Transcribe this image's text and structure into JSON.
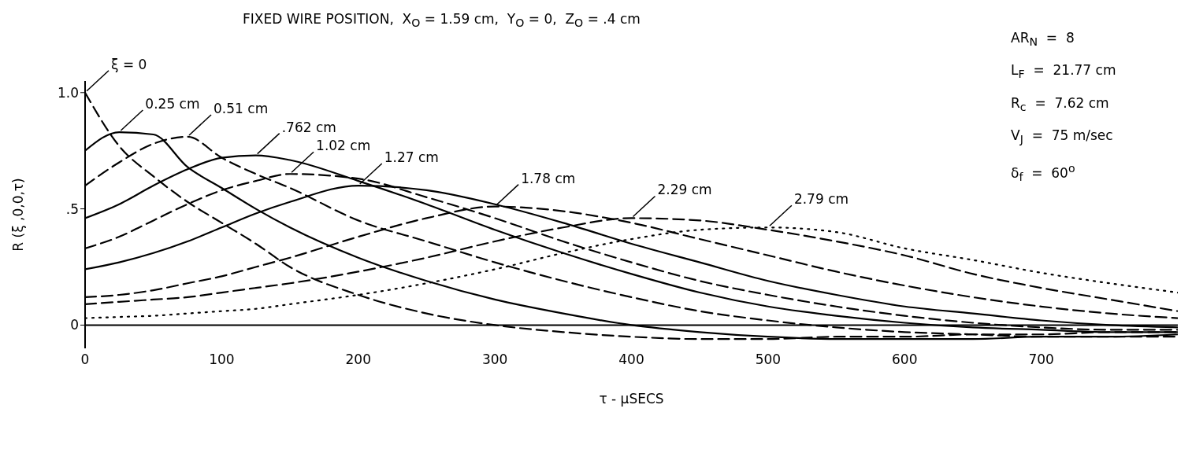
{
  "chart_data": {
    "type": "line",
    "title": "FIXED WIRE POSITION,  X$_{O}$ = 1.59 cm,  Y$_{O}$ = 0,  Z$_{O}$ = .4 cm",
    "xlabel": "τ - μSECS",
    "ylabel": "R (ξ ,0,0,τ)",
    "annotations": [
      "AR$_{N}$  =  8",
      "L$_{F}$  =  21.77 cm",
      "R$_{c}$  =  7.62 cm",
      "V$_{J}$  =  75 m/sec",
      "δ$_{f}$  =  60$^{o}$"
    ],
    "x": [
      0,
      25,
      50,
      75,
      100,
      125,
      150,
      200,
      250,
      300,
      350,
      400,
      450,
      500,
      550,
      600,
      650,
      700,
      750,
      800
    ],
    "series": [
      {
        "name": "ξ = 0",
        "color": "#000000",
        "line_style": "dashed",
        "values": [
          1.0,
          0.77,
          0.64,
          0.53,
          0.44,
          0.35,
          0.25,
          0.13,
          0.05,
          0,
          -0.03,
          -0.05,
          -0.06,
          -0.06,
          -0.05,
          -0.05,
          -0.04,
          -0.04,
          -0.03,
          -0.03
        ]
      },
      {
        "name": "0.25 cm",
        "color": "#000000",
        "line_style": "solid",
        "values": [
          0.75,
          0.83,
          0.82,
          0.68,
          0.59,
          0.5,
          0.42,
          0.29,
          0.19,
          0.11,
          0.05,
          0,
          -0.03,
          -0.05,
          -0.06,
          -0.06,
          -0.06,
          -0.05,
          -0.05,
          -0.04
        ]
      },
      {
        "name": "0.51 cm",
        "color": "#000000",
        "line_style": "dashed",
        "values": [
          0.6,
          0.7,
          0.78,
          0.81,
          0.72,
          0.65,
          0.59,
          0.45,
          0.36,
          0.27,
          0.19,
          0.12,
          0.06,
          0.02,
          -0.01,
          -0.03,
          -0.04,
          -0.05,
          -0.05,
          -0.05
        ]
      },
      {
        "name": ".762 cm",
        "color": "#000000",
        "line_style": "solid",
        "values": [
          0.46,
          0.52,
          0.6,
          0.67,
          0.72,
          0.73,
          0.71,
          0.62,
          0.52,
          0.41,
          0.31,
          0.22,
          0.14,
          0.08,
          0.04,
          0.01,
          -0.01,
          -0.02,
          -0.03,
          -0.03
        ]
      },
      {
        "name": "1.02 cm",
        "color": "#000000",
        "line_style": "dashed",
        "values": [
          0.33,
          0.38,
          0.45,
          0.52,
          0.58,
          0.62,
          0.65,
          0.63,
          0.55,
          0.46,
          0.36,
          0.27,
          0.19,
          0.13,
          0.08,
          0.04,
          0.01,
          -0.01,
          -0.02,
          -0.02
        ]
      },
      {
        "name": "1.27 cm",
        "color": "#000000",
        "line_style": "solid",
        "values": [
          0.24,
          0.27,
          0.31,
          0.36,
          0.42,
          0.48,
          0.53,
          0.6,
          0.58,
          0.52,
          0.44,
          0.35,
          0.27,
          0.19,
          0.13,
          0.08,
          0.05,
          0.02,
          0,
          -0.01
        ]
      },
      {
        "name": "1.78 cm",
        "color": "#000000",
        "line_style": "dashed",
        "values": [
          0.12,
          0.13,
          0.15,
          0.18,
          0.21,
          0.25,
          0.29,
          0.38,
          0.46,
          0.51,
          0.49,
          0.44,
          0.37,
          0.3,
          0.23,
          0.17,
          0.12,
          0.08,
          0.05,
          0.03
        ]
      },
      {
        "name": "2.29 cm",
        "color": "#000000",
        "line_style": "dashed",
        "values": [
          0.09,
          0.1,
          0.11,
          0.12,
          0.14,
          0.16,
          0.18,
          0.23,
          0.29,
          0.36,
          0.42,
          0.46,
          0.45,
          0.41,
          0.36,
          0.3,
          0.22,
          0.16,
          0.11,
          0.06
        ]
      },
      {
        "name": "2.79 cm",
        "color": "#000000",
        "line_style": "dotted",
        "values": [
          0.03,
          0.035,
          0.04,
          0.05,
          0.06,
          0.07,
          0.09,
          0.13,
          0.18,
          0.24,
          0.31,
          0.37,
          0.41,
          0.42,
          0.4,
          0.33,
          0.28,
          0.225,
          0.18,
          0.14
        ]
      }
    ],
    "xlim": [
      0,
      800
    ],
    "ylim": [
      -0.1,
      1.05
    ],
    "xticks": [
      0,
      100,
      200,
      300,
      400,
      500,
      600,
      700
    ],
    "yticks": [
      {
        "value": 0,
        "label": "0"
      },
      {
        "value": 0.5,
        "label": ".5"
      },
      {
        "value": 1,
        "label": "1.0"
      }
    ]
  }
}
